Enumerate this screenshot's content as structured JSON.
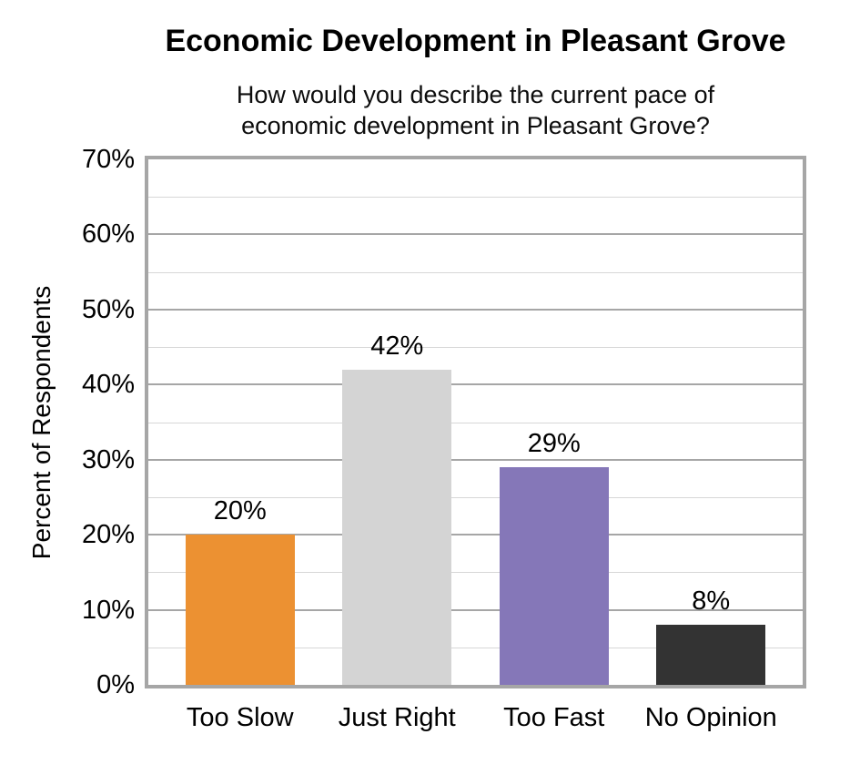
{
  "chart_data": {
    "type": "bar",
    "title": "Economic Development in Pleasant Grove",
    "subtitle_lines": [
      "How would you describe the current pace of",
      "economic development in Pleasant Grove?"
    ],
    "ylabel": "Percent of Respondents",
    "xlabel": "",
    "categories": [
      "Too Slow",
      "Just Right",
      "Too Fast",
      "No Opinion"
    ],
    "values": [
      20,
      42,
      29,
      8
    ],
    "data_labels": [
      "20%",
      "42%",
      "29%",
      "8%"
    ],
    "bar_colors": [
      "#EC9132",
      "#D4D4D4",
      "#8577B8",
      "#333333"
    ],
    "ylim": [
      0,
      70
    ],
    "y_major_tick_labels": [
      "0%",
      "10%",
      "20%",
      "30%",
      "40%",
      "50%",
      "60%",
      "70%"
    ],
    "y_major_step": 10,
    "y_minor_step": 5,
    "grid": "horizontal",
    "legend": "none",
    "colors": {
      "gridline_major": "#A6A6A6",
      "gridline_minor": "#D7D7D7",
      "plot_border": "#A6A6A6",
      "background": "#FFFFFF",
      "text": "#000000"
    }
  }
}
